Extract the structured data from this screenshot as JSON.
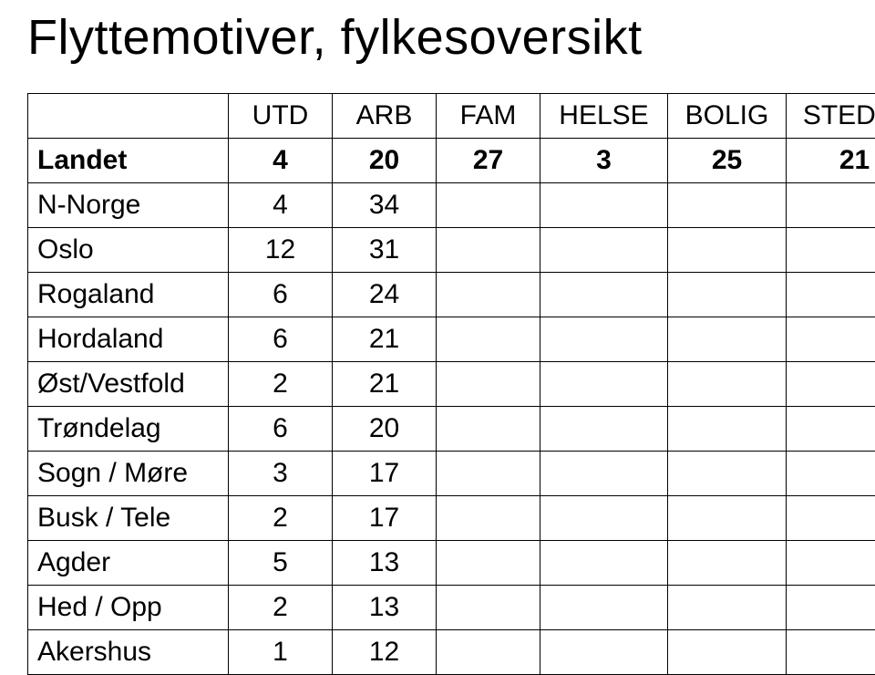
{
  "title": "Flyttemotiver, fylkesoversikt",
  "columns": [
    "UTD",
    "ARB",
    "FAM",
    "HELSE",
    "BOLIG",
    "STED/M"
  ],
  "rows": [
    {
      "label": "Landet",
      "bold": true,
      "values": [
        "4",
        "20",
        "27",
        "3",
        "25",
        "21"
      ]
    },
    {
      "label": "N-Norge",
      "bold": false,
      "values": [
        "4",
        "34",
        "",
        "",
        "",
        ""
      ]
    },
    {
      "label": "Oslo",
      "bold": false,
      "values": [
        "12",
        "31",
        "",
        "",
        "",
        ""
      ]
    },
    {
      "label": "Rogaland",
      "bold": false,
      "values": [
        "6",
        "24",
        "",
        "",
        "",
        ""
      ]
    },
    {
      "label": "Hordaland",
      "bold": false,
      "values": [
        "6",
        "21",
        "",
        "",
        "",
        ""
      ]
    },
    {
      "label": "Øst/Vestfold",
      "bold": false,
      "values": [
        "2",
        "21",
        "",
        "",
        "",
        ""
      ]
    },
    {
      "label": "Trøndelag",
      "bold": false,
      "values": [
        "6",
        "20",
        "",
        "",
        "",
        ""
      ]
    },
    {
      "label": "Sogn / Møre",
      "bold": false,
      "values": [
        "3",
        "17",
        "",
        "",
        "",
        ""
      ]
    },
    {
      "label": "Busk / Tele",
      "bold": false,
      "values": [
        "2",
        "17",
        "",
        "",
        "",
        ""
      ]
    },
    {
      "label": "Agder",
      "bold": false,
      "values": [
        "5",
        "13",
        "",
        "",
        "",
        ""
      ]
    },
    {
      "label": "Hed / Opp",
      "bold": false,
      "values": [
        "2",
        "13",
        "",
        "",
        "",
        ""
      ]
    },
    {
      "label": "Akershus",
      "bold": false,
      "values": [
        "1",
        "12",
        "",
        "",
        "",
        ""
      ]
    }
  ],
  "style": {
    "background_color": "#ffffff",
    "text_color": "#000000",
    "border_color": "#000000",
    "title_fontsize": 54,
    "cell_fontsize": 30,
    "font_family": "Arial"
  }
}
